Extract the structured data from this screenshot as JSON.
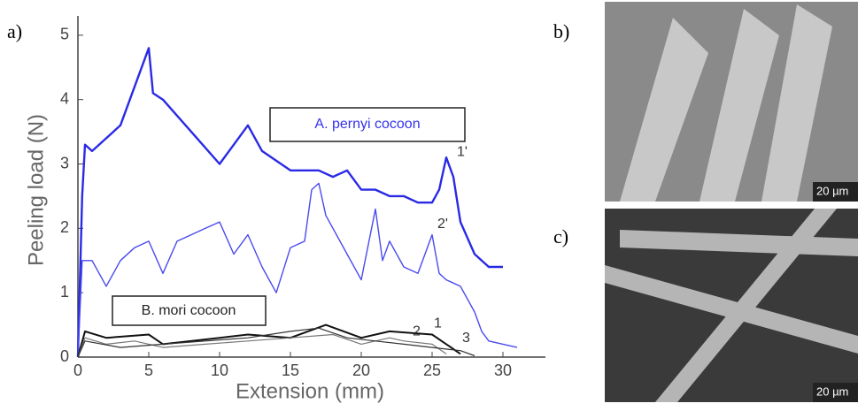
{
  "chart_data": {
    "type": "line",
    "panel": "a)",
    "x_label": "Extension (mm)",
    "y_label": "Peeling load (N)",
    "xlim": [
      0,
      33
    ],
    "ylim": [
      0,
      5.3
    ],
    "xticks": [
      0,
      5,
      10,
      15,
      20,
      25,
      30
    ],
    "yticks": [
      0,
      1,
      2,
      3,
      4,
      5
    ],
    "grid": false,
    "annotations": [
      "A. pernyi cocoon",
      "B. mori cocoon"
    ],
    "series": [
      {
        "name": "1'",
        "color": "#2a2ae6",
        "width": 2.4,
        "x": [
          0,
          0.3,
          0.5,
          1,
          2,
          3,
          4,
          5,
          5.3,
          6,
          8,
          10,
          11,
          12,
          13,
          15,
          17,
          18,
          19,
          20,
          21,
          22,
          23,
          24,
          25,
          25.5,
          26,
          26.5,
          27,
          28,
          29,
          30
        ],
        "values": [
          0,
          2.5,
          3.3,
          3.2,
          3.4,
          3.6,
          4.2,
          4.8,
          4.1,
          4.0,
          3.5,
          3.0,
          3.3,
          3.6,
          3.2,
          2.9,
          2.9,
          2.8,
          2.9,
          2.6,
          2.6,
          2.5,
          2.5,
          2.4,
          2.4,
          2.6,
          3.1,
          2.8,
          2.1,
          1.6,
          1.4,
          1.4
        ]
      },
      {
        "name": "2'",
        "color": "#4a4af0",
        "width": 1.4,
        "x": [
          0,
          0.3,
          1,
          2,
          3,
          4,
          5,
          6,
          7,
          8,
          9,
          10,
          11,
          12,
          13,
          14,
          15,
          16,
          16.5,
          17,
          17.5,
          18,
          19,
          20,
          21,
          21.5,
          22,
          23,
          24,
          25,
          25.5,
          26,
          27,
          28,
          28.5,
          29,
          30,
          31
        ],
        "values": [
          0,
          1.5,
          1.5,
          1.1,
          1.5,
          1.7,
          1.8,
          1.3,
          1.8,
          1.9,
          2.0,
          2.1,
          1.6,
          1.9,
          1.4,
          1.0,
          1.7,
          1.8,
          2.6,
          2.7,
          2.2,
          2.0,
          1.6,
          1.2,
          2.3,
          1.5,
          1.8,
          1.4,
          1.3,
          1.9,
          1.3,
          1.2,
          1.1,
          0.7,
          0.4,
          0.25,
          0.2,
          0.15
        ]
      },
      {
        "name": "1",
        "color": "#111111",
        "width": 2,
        "x": [
          0,
          0.5,
          2,
          5,
          6,
          10,
          12,
          15,
          17.5,
          20,
          22,
          25,
          26,
          27
        ],
        "values": [
          0,
          0.4,
          0.3,
          0.35,
          0.2,
          0.3,
          0.35,
          0.3,
          0.5,
          0.3,
          0.4,
          0.35,
          0.2,
          0.05
        ]
      },
      {
        "name": "2",
        "color": "#777777",
        "width": 1.2,
        "x": [
          0,
          0.5,
          2,
          4,
          6,
          9,
          12,
          15,
          18,
          20,
          22,
          23,
          25,
          26
        ],
        "values": [
          0,
          0.3,
          0.2,
          0.25,
          0.15,
          0.2,
          0.25,
          0.3,
          0.35,
          0.2,
          0.3,
          0.25,
          0.2,
          0.05
        ]
      },
      {
        "name": "3",
        "color": "#333333",
        "width": 1.2,
        "x": [
          0,
          0.5,
          3,
          6,
          9,
          12,
          15,
          17,
          19,
          21,
          23,
          25,
          27,
          28
        ],
        "values": [
          0,
          0.25,
          0.15,
          0.2,
          0.25,
          0.3,
          0.4,
          0.45,
          0.3,
          0.25,
          0.2,
          0.15,
          0.1,
          0.02
        ]
      }
    ]
  },
  "images": [
    {
      "panel": "b)",
      "scale": "20 µm"
    },
    {
      "panel": "c)",
      "scale": "20 µm"
    }
  ]
}
